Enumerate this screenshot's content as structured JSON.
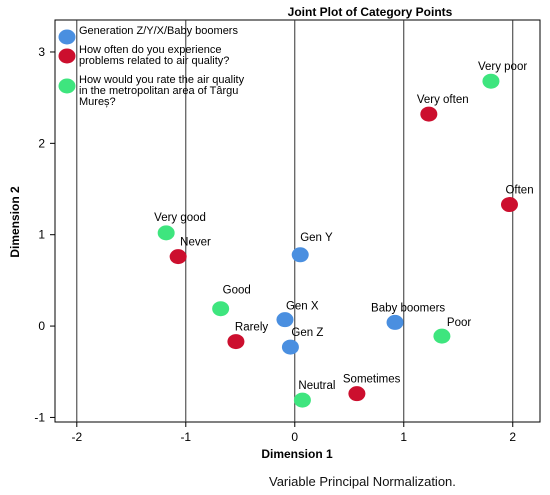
{
  "chart_data": {
    "type": "scatter",
    "title": "Joint Plot of Category Points",
    "xlabel": "Dimension 1",
    "ylabel": "Dimension 2",
    "xlim": [
      -2.2,
      2.25
    ],
    "ylim": [
      -1.05,
      3.35
    ],
    "xticks": [
      "-2",
      "-1",
      "0",
      "1",
      "2"
    ],
    "xtick_values": [
      -2,
      -1,
      0,
      1,
      2
    ],
    "yticks": [
      "3",
      "2",
      "1",
      "0",
      "-1"
    ],
    "ytick_values": [
      3,
      2,
      1,
      0,
      -1
    ],
    "grid": "vertical lines at x ticks",
    "legend_position": "top-left",
    "series": [
      {
        "name": "Generation Z/Y/X/Baby boomers",
        "color": "#4a8fe0",
        "points": [
          {
            "label": "Gen Y",
            "x": 0.05,
            "y": 0.78
          },
          {
            "label": "Gen X",
            "x": -0.09,
            "y": 0.07
          },
          {
            "label": "Gen Z",
            "x": -0.04,
            "y": -0.23
          },
          {
            "label": "Baby boomers",
            "x": 0.92,
            "y": 0.04
          }
        ]
      },
      {
        "name": "How often do you experience problems related to air quality?",
        "color": "#cc0f2e",
        "points": [
          {
            "label": "Very often",
            "x": 1.23,
            "y": 2.32
          },
          {
            "label": "Often",
            "x": 1.97,
            "y": 1.33
          },
          {
            "label": "Never",
            "x": -1.07,
            "y": 0.76
          },
          {
            "label": "Rarely",
            "x": -0.54,
            "y": -0.17
          },
          {
            "label": "Sometimes",
            "x": 0.57,
            "y": -0.74
          }
        ]
      },
      {
        "name": "How would you rate the air quality in the metropolitan area of Târgu Mureș?",
        "color": "#3ee57e",
        "points": [
          {
            "label": "Very poor",
            "x": 1.8,
            "y": 2.68
          },
          {
            "label": "Very good",
            "x": -1.18,
            "y": 1.02
          },
          {
            "label": "Good",
            "x": -0.68,
            "y": 0.19
          },
          {
            "label": "Poor",
            "x": 1.35,
            "y": -0.11
          },
          {
            "label": "Neutral",
            "x": 0.07,
            "y": -0.81
          }
        ]
      }
    ],
    "legend": [
      {
        "lines": [
          "Generation Z/Y/X/Baby boomers"
        ]
      },
      {
        "lines": [
          "How often do you experience",
          "problems related to air quality?"
        ]
      },
      {
        "lines": [
          "How would you rate the air quality",
          "in the metropolitan area of Târgu",
          "Mureș?"
        ]
      }
    ],
    "footnote": "Variable Principal Normalization."
  }
}
